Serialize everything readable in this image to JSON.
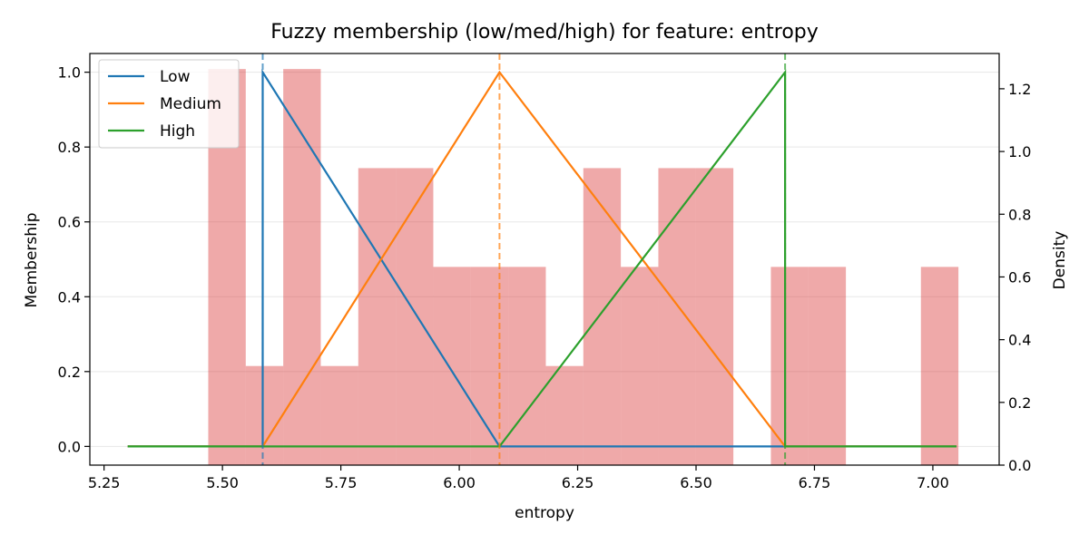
{
  "chart_data": {
    "type": "line",
    "title": "Fuzzy membership (low/med/high) for feature: entropy",
    "xlabel": "entropy",
    "ylabel": "Membership",
    "ylabel_right": "Density",
    "xlim": [
      5.22,
      7.14
    ],
    "ylim": [
      -0.05,
      1.05
    ],
    "ylim_right": [
      0,
      1.3125
    ],
    "x_ticks": [
      "5.25",
      "5.50",
      "5.75",
      "6.00",
      "6.25",
      "6.50",
      "6.75",
      "7.00"
    ],
    "y_ticks": [
      "0.0",
      "0.2",
      "0.4",
      "0.6",
      "0.8",
      "1.0"
    ],
    "y_right_ticks": [
      "0.0",
      "0.2",
      "0.4",
      "0.6",
      "0.8",
      "1.0",
      "1.2"
    ],
    "grid": "horizontal",
    "legend_position": "top-left",
    "series": [
      {
        "name": "Low",
        "color": "#1f77b4",
        "x": [
          5.3,
          5.585,
          5.585,
          6.085,
          6.688,
          6.688,
          7.05
        ],
        "y": [
          0,
          0,
          1,
          0,
          0,
          0,
          0
        ]
      },
      {
        "name": "Medium",
        "color": "#ff7f0e",
        "x": [
          5.3,
          5.585,
          6.085,
          6.688,
          7.05
        ],
        "y": [
          0,
          0,
          1,
          0,
          0
        ]
      },
      {
        "name": "High",
        "color": "#2ca02c",
        "x": [
          5.3,
          6.085,
          6.688,
          6.688,
          7.05
        ],
        "y": [
          0,
          0,
          1,
          0,
          0
        ]
      }
    ],
    "vlines": [
      {
        "x": 5.585,
        "color": "#1f77b4"
      },
      {
        "x": 6.085,
        "color": "#ff7f0e"
      },
      {
        "x": 6.688,
        "color": "#2ca02c"
      }
    ],
    "histogram": {
      "color": "#d62728",
      "opacity": 0.4,
      "bin_start": 5.47,
      "bin_width": 0.0792,
      "density": [
        1.263,
        0.316,
        1.263,
        0.316,
        0.947,
        0.947,
        0.632,
        0.632,
        0.632,
        0.316,
        0.947,
        0.632,
        0.947,
        0.947,
        0,
        0.632,
        0.632,
        0,
        0,
        0.632
      ]
    }
  }
}
